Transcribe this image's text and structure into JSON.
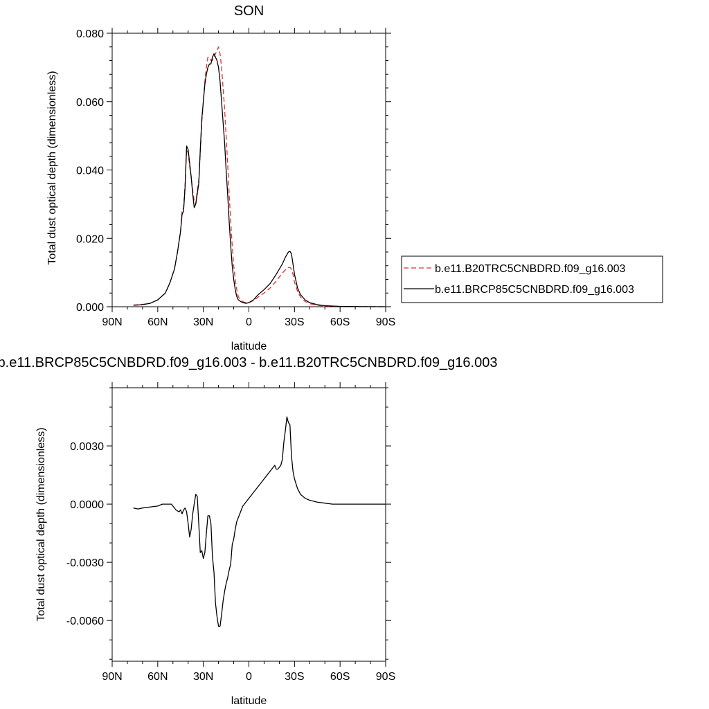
{
  "chart_data": [
    {
      "type": "line",
      "title": "SON",
      "xlabel": "latitude",
      "ylabel": "Total dust optical depth (dimensionless)",
      "xlim": [
        -90,
        90
      ],
      "ylim": [
        0,
        0.08
      ],
      "x_ticks": [
        {
          "value": -90,
          "label": "90N"
        },
        {
          "value": -60,
          "label": "60N"
        },
        {
          "value": -30,
          "label": "30N"
        },
        {
          "value": 0,
          "label": "0"
        },
        {
          "value": 30,
          "label": "30S"
        },
        {
          "value": 60,
          "label": "60S"
        },
        {
          "value": 90,
          "label": "90S"
        }
      ],
      "y_ticks": [
        {
          "value": 0,
          "label": "0.000"
        },
        {
          "value": 0.02,
          "label": "0.020"
        },
        {
          "value": 0.04,
          "label": "0.040"
        },
        {
          "value": 0.06,
          "label": "0.060"
        },
        {
          "value": 0.08,
          "label": "0.080"
        }
      ],
      "legend_position": "right",
      "series": [
        {
          "name": "b.e11.B20TRC5CNBDRD.f09_g16.003",
          "color": "#e03030",
          "dash": "dashed",
          "x": [
            -76,
            -70,
            -65,
            -60,
            -55,
            -52,
            -49,
            -47,
            -45,
            -44,
            -43,
            -42,
            -41,
            -40,
            -39,
            -38,
            -37,
            -36,
            -35,
            -34,
            -33,
            -32,
            -31,
            -30,
            -29,
            -28,
            -27,
            -26,
            -25,
            -24,
            -23,
            -22,
            -21,
            -20,
            -19,
            -18,
            -17,
            -16,
            -15,
            -14,
            -13,
            -12,
            -11,
            -10,
            -9,
            -8,
            -7,
            -6,
            -5,
            -4,
            -3,
            -2,
            0,
            3,
            6,
            10,
            14,
            18,
            20,
            22,
            24,
            26,
            27,
            28,
            29,
            30,
            32,
            34,
            37,
            40,
            45,
            50,
            60,
            70,
            80,
            90
          ],
          "y": [
            0.0005,
            0.0007,
            0.001,
            0.002,
            0.004,
            0.007,
            0.011,
            0.016,
            0.022,
            0.028,
            0.029,
            0.036,
            0.046,
            0.045,
            0.041,
            0.038,
            0.034,
            0.031,
            0.03,
            0.034,
            0.037,
            0.045,
            0.054,
            0.06,
            0.066,
            0.07,
            0.073,
            0.073,
            0.072,
            0.072,
            0.073,
            0.074,
            0.075,
            0.076,
            0.074,
            0.07,
            0.064,
            0.058,
            0.05,
            0.042,
            0.033,
            0.025,
            0.018,
            0.012,
            0.008,
            0.005,
            0.003,
            0.0022,
            0.0018,
            0.0015,
            0.0013,
            0.0012,
            0.0012,
            0.0018,
            0.0028,
            0.004,
            0.0055,
            0.0075,
            0.0087,
            0.0098,
            0.0108,
            0.0115,
            0.0115,
            0.011,
            0.0095,
            0.0072,
            0.0045,
            0.0028,
            0.0015,
            0.0009,
            0.0004,
            0.0002,
            0.0001,
            5e-05,
            2e-05,
            0.0
          ]
        },
        {
          "name": "b.e11.BRCP85C5CNBDRD.f09_g16.003",
          "color": "#000000",
          "dash": "solid",
          "x": [
            -76,
            -70,
            -65,
            -60,
            -55,
            -52,
            -49,
            -47,
            -45,
            -44,
            -43,
            -42,
            -41,
            -40,
            -39,
            -38,
            -37,
            -36,
            -35,
            -34,
            -33,
            -32,
            -31,
            -30,
            -29,
            -28,
            -27,
            -26,
            -25,
            -24,
            -23,
            -22,
            -21,
            -20,
            -19,
            -18,
            -17,
            -16,
            -15,
            -14,
            -13,
            -12,
            -11,
            -10,
            -9,
            -8,
            -7,
            -6,
            -5,
            -4,
            -3,
            -2,
            0,
            3,
            6,
            10,
            14,
            18,
            20,
            22,
            24,
            26,
            27,
            28,
            29,
            30,
            32,
            34,
            37,
            40,
            45,
            50,
            60,
            70,
            80,
            90
          ],
          "y": [
            0.0004,
            0.0006,
            0.001,
            0.002,
            0.004,
            0.007,
            0.011,
            0.016,
            0.022,
            0.027,
            0.028,
            0.035,
            0.047,
            0.046,
            0.042,
            0.038,
            0.033,
            0.029,
            0.03,
            0.033,
            0.036,
            0.046,
            0.055,
            0.06,
            0.065,
            0.068,
            0.07,
            0.071,
            0.071,
            0.073,
            0.074,
            0.073,
            0.072,
            0.07,
            0.066,
            0.06,
            0.054,
            0.048,
            0.04,
            0.033,
            0.025,
            0.018,
            0.012,
            0.008,
            0.005,
            0.003,
            0.002,
            0.0017,
            0.0014,
            0.0012,
            0.0011,
            0.001,
            0.0012,
            0.002,
            0.0035,
            0.005,
            0.0068,
            0.0095,
            0.011,
            0.0125,
            0.0145,
            0.016,
            0.0162,
            0.0155,
            0.0125,
            0.0095,
            0.0055,
            0.0035,
            0.002,
            0.0012,
            0.0006,
            0.0003,
            0.0001,
            5e-05,
            2e-05,
            0.0
          ]
        }
      ]
    },
    {
      "type": "line",
      "title": "b.e11.BRCP85C5CNBDRD.f09_g16.003 - b.e11.B20TRC5CNBDRD.f09_g16.003",
      "xlabel": "latitude",
      "ylabel": "Total dust optical depth (dimensionless)",
      "xlim": [
        -90,
        90
      ],
      "ylim": [
        -0.0081,
        0.006
      ],
      "x_ticks": [
        {
          "value": -90,
          "label": "90N"
        },
        {
          "value": -60,
          "label": "60N"
        },
        {
          "value": -30,
          "label": "30N"
        },
        {
          "value": 0,
          "label": "0"
        },
        {
          "value": 30,
          "label": "30S"
        },
        {
          "value": 60,
          "label": "60S"
        },
        {
          "value": 90,
          "label": "90S"
        }
      ],
      "y_ticks": [
        {
          "value": -0.006,
          "label": "-0.0060"
        },
        {
          "value": -0.003,
          "label": "-0.0030"
        },
        {
          "value": 0,
          "label": "0.0000"
        },
        {
          "value": 0.003,
          "label": "0.0030"
        }
      ],
      "series": [
        {
          "color": "#000000",
          "dash": "solid",
          "x": [
            -76,
            -73,
            -70,
            -65,
            -60,
            -57,
            -54,
            -51,
            -48,
            -46,
            -45,
            -44,
            -43,
            -42,
            -41,
            -40,
            -39,
            -38,
            -37,
            -36,
            -35,
            -34,
            -33,
            -32,
            -31,
            -30,
            -29,
            -28,
            -27,
            -26,
            -25,
            -24,
            -23,
            -22,
            -21,
            -20,
            -19,
            -18,
            -17,
            -16,
            -15,
            -14,
            -13,
            -12,
            -11,
            -10,
            -9,
            -8,
            -7,
            -6,
            -5,
            -4,
            -3,
            -2,
            0,
            3,
            6,
            9,
            12,
            15,
            17,
            18,
            19,
            20,
            21,
            22,
            23,
            24,
            25,
            26,
            27,
            28,
            29,
            30,
            32,
            34,
            37,
            40,
            45,
            50,
            55,
            60,
            70,
            80,
            90
          ],
          "y": [
            -0.0002,
            -0.00025,
            -0.0002,
            -0.00015,
            -0.0001,
            0.0,
            0.0,
            0.0,
            -0.0003,
            -0.0004,
            -0.0003,
            -0.0005,
            -0.0003,
            -0.0002,
            -0.0004,
            -0.001,
            -0.0017,
            -0.0013,
            -0.0005,
            0.0,
            0.0005,
            0.0004,
            -0.001,
            -0.0025,
            -0.0024,
            -0.0028,
            -0.0025,
            -0.0015,
            -0.0006,
            -0.0006,
            -0.001,
            -0.0027,
            -0.0035,
            -0.0051,
            -0.0058,
            -0.0063,
            -0.0063,
            -0.0057,
            -0.005,
            -0.0045,
            -0.0041,
            -0.0038,
            -0.0034,
            -0.0031,
            -0.0021,
            -0.0018,
            -0.0013,
            -0.0009,
            -0.0007,
            -0.0005,
            -0.0003,
            -0.0001,
            0.0,
            0.0001,
            0.0003,
            0.0006,
            0.0009,
            0.0012,
            0.0015,
            0.0018,
            0.002,
            0.0018,
            0.0018,
            0.0019,
            0.002,
            0.0023,
            0.0032,
            0.0038,
            0.0045,
            0.0042,
            0.0041,
            0.0025,
            0.0017,
            0.0013,
            0.0008,
            0.0005,
            0.0003,
            0.0002,
            0.0001,
            5e-05,
            0.0,
            0.0,
            0.0,
            0.0,
            0.0
          ]
        }
      ]
    }
  ]
}
